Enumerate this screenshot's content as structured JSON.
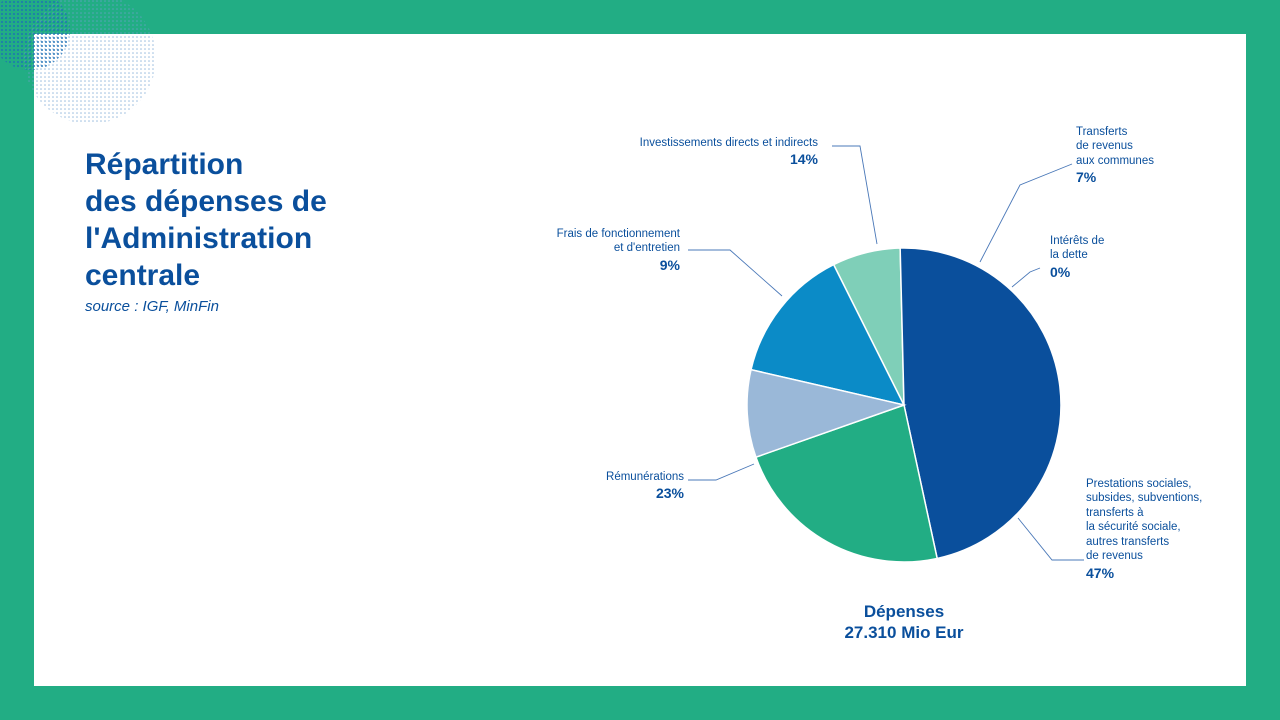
{
  "slide": {
    "title": "Répartition\ndes dépenses de\nl'Administration\ncentrale",
    "source": "source : IGF, MinFin"
  },
  "colors": {
    "frame": "#22ad84",
    "text": "#0a4f9c"
  },
  "chart_data": {
    "type": "pie",
    "title": "",
    "total_label": "Dépenses",
    "total_value": "27.310 Mio Eur",
    "slices": [
      {
        "label": "Investissements directs et indirects",
        "pct": "14%",
        "value": 14,
        "color": "#0b8bc7"
      },
      {
        "label": "Transferts\nde revenus\naux communes",
        "pct": "7%",
        "value": 7,
        "color": "#7fcfb8"
      },
      {
        "label": "Intérêts de\nla dette",
        "pct": "0%",
        "value": 0,
        "color": "#1f6fb8"
      },
      {
        "label": "Prestations sociales,\nsubsides, subventions,\ntransferts à\nla sécurité sociale,\nautres transferts\nde revenus",
        "pct": "47%",
        "value": 47,
        "color": "#0a4f9c"
      },
      {
        "label": "Rémunérations",
        "pct": "23%",
        "value": 23,
        "color": "#22ad84"
      },
      {
        "label": "Frais de fonctionnement\net d'entretien",
        "pct": "9%",
        "value": 9,
        "color": "#9ab8d8"
      }
    ]
  }
}
